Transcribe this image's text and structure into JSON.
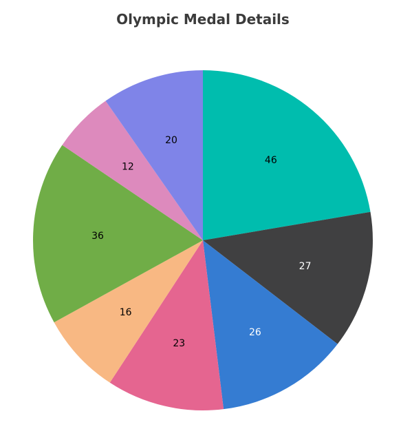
{
  "chart_data": {
    "type": "pie",
    "title": "Olympic Medal Details",
    "categories": [
      "",
      "",
      "",
      "",
      "",
      "",
      "",
      ""
    ],
    "values": [
      46,
      27,
      26,
      23,
      16,
      36,
      12,
      20
    ],
    "colors": [
      "#00bdae",
      "#404041",
      "#357cd2",
      "#e56590",
      "#f8b883",
      "#70ad47",
      "#dd8abd",
      "#7f84e8"
    ],
    "label_colors": [
      "#000000",
      "#ffffff",
      "#ffffff",
      "#000000",
      "#000000",
      "#000000",
      "#000000",
      "#000000"
    ],
    "start_angle_deg": 0,
    "direction": "clockwise",
    "legend": "none"
  }
}
